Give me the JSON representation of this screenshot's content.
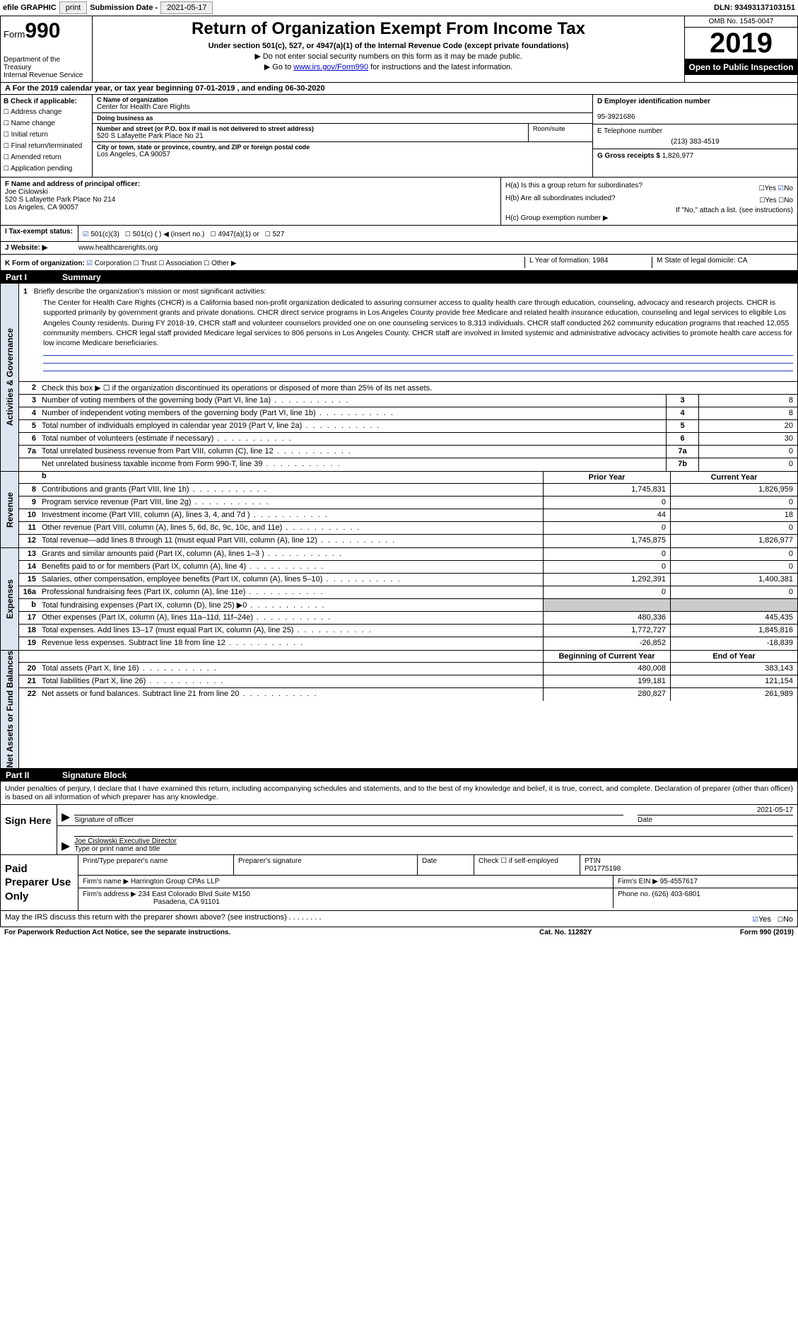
{
  "topbar": {
    "efile": "efile GRAPHIC",
    "print": "print",
    "sub_label": "Submission Date - ",
    "sub_date": "2021-05-17",
    "dln_label": "DLN: ",
    "dln": "93493137103151"
  },
  "header": {
    "form_prefix": "Form",
    "form_num": "990",
    "dept": "Department of the Treasury\nInternal Revenue Service",
    "title": "Return of Organization Exempt From Income Tax",
    "sub": "Under section 501(c), 527, or 4947(a)(1) of the Internal Revenue Code (except private foundations)",
    "line1": "▶ Do not enter social security numbers on this form as it may be made public.",
    "line2_pre": "▶ Go to ",
    "line2_link": "www.irs.gov/Form990",
    "line2_post": " for instructions and the latest information.",
    "omb": "OMB No. 1545-0047",
    "year": "2019",
    "open": "Open to Public Inspection"
  },
  "period": {
    "text": "A  For the 2019 calendar year, or tax year beginning 07-01-2019   , and ending 06-30-2020"
  },
  "colB": {
    "hdr": "B Check if applicable:",
    "items": [
      "Address change",
      "Name change",
      "Initial return",
      "Final return/terminated",
      "Amended return",
      "Application pending"
    ]
  },
  "colC": {
    "name_lab": "C Name of organization",
    "name": "Center for Health Care Rights",
    "dba_lab": "Doing business as",
    "dba": "",
    "street_lab": "Number and street (or P.O. box if mail is not delivered to street address)",
    "street": "520 S Lafayette Park Place No 21",
    "suite_lab": "Room/suite",
    "city_lab": "City or town, state or province, country, and ZIP or foreign postal code",
    "city": "Los Angeles, CA  90057"
  },
  "colDE": {
    "d_lab": "D Employer identification number",
    "ein": "95-3921686",
    "e_lab": "E Telephone number",
    "phone": "(213) 383-4519",
    "g_lab": "G Gross receipts $ ",
    "g_val": "1,826,977"
  },
  "f": {
    "lab": "F  Name and address of principal officer:",
    "name": "Joe Cislowski",
    "addr1": "520 S Lafayette Park Place No 214",
    "addr2": "Los Angeles, CA  90057"
  },
  "h": {
    "a": "H(a)  Is this a group return for subordinates?",
    "a_yes": "Yes",
    "a_no": "No",
    "b": "H(b)  Are all subordinates included?",
    "b_yes": "Yes",
    "b_no": "No",
    "b_note": "If \"No,\" attach a list. (see instructions)",
    "c": "H(c)  Group exemption number ▶"
  },
  "status": {
    "lab": "I  Tax-exempt status:",
    "opts": [
      "501(c)(3)",
      "501(c) (  ) ◀ (insert no.)",
      "4947(a)(1) or",
      "527"
    ]
  },
  "web": {
    "lab": "J  Website: ▶",
    "val": "www.healthcarerights.org"
  },
  "k": {
    "lab": "K Form of organization:",
    "opts": [
      "Corporation",
      "Trust",
      "Association",
      "Other ▶"
    ],
    "l": "L Year of formation: 1984",
    "m": "M State of legal domicile: CA"
  },
  "part1": {
    "num": "Part I",
    "title": "Summary"
  },
  "mission": {
    "hdr": "1   Briefly describe the organization's mission or most significant activities:",
    "text": "The Center for Health Care Rights (CHCR) is a California based non-profit organization dedicated to assuring consumer access to quality health care through education, counseling, advocacy and research projects. CHCR is supported primarily by government grants and private donations. CHCR direct service programs in Los Angeles County provide free Medicare and related health insurance education, counseling and legal services to eligible Los Angeles County residents. During FY 2018-19, CHCR staff and volunteer counselors provided one on one counseling services to 8,313 individuals. CHCR staff conducted 262 community education programs that reached 12,055 community members. CHCR legal staff provided Medicare legal services to 806 persons in Los Angeles County. CHCR staff are involved in limited systemic and administrative advocacy activities to promote health care access for low income Medicare beneficiaries."
  },
  "gov": {
    "tab": "Activities & Governance",
    "l2": "Check this box ▶ ☐ if the organization discontinued its operations or disposed of more than 25% of its net assets.",
    "rows": [
      {
        "n": "3",
        "d": "Number of voting members of the governing body (Part VI, line 1a)",
        "box": "3",
        "v": "8"
      },
      {
        "n": "4",
        "d": "Number of independent voting members of the governing body (Part VI, line 1b)",
        "box": "4",
        "v": "8"
      },
      {
        "n": "5",
        "d": "Total number of individuals employed in calendar year 2019 (Part V, line 2a)",
        "box": "5",
        "v": "20"
      },
      {
        "n": "6",
        "d": "Total number of volunteers (estimate if necessary)",
        "box": "6",
        "v": "30"
      },
      {
        "n": "7a",
        "d": "Total unrelated business revenue from Part VIII, column (C), line 12",
        "box": "7a",
        "v": "0"
      },
      {
        "n": "",
        "d": "Net unrelated business taxable income from Form 990-T, line 39",
        "box": "7b",
        "v": "0"
      }
    ]
  },
  "rev": {
    "tab": "Revenue",
    "hdr_prior": "Prior Year",
    "hdr_curr": "Current Year",
    "rows": [
      {
        "n": "8",
        "d": "Contributions and grants (Part VIII, line 1h)",
        "p": "1,745,831",
        "c": "1,826,959"
      },
      {
        "n": "9",
        "d": "Program service revenue (Part VIII, line 2g)",
        "p": "0",
        "c": "0"
      },
      {
        "n": "10",
        "d": "Investment income (Part VIII, column (A), lines 3, 4, and 7d )",
        "p": "44",
        "c": "18"
      },
      {
        "n": "11",
        "d": "Other revenue (Part VIII, column (A), lines 5, 6d, 8c, 9c, 10c, and 11e)",
        "p": "0",
        "c": "0"
      },
      {
        "n": "12",
        "d": "Total revenue—add lines 8 through 11 (must equal Part VIII, column (A), line 12)",
        "p": "1,745,875",
        "c": "1,826,977"
      }
    ]
  },
  "exp": {
    "tab": "Expenses",
    "rows": [
      {
        "n": "13",
        "d": "Grants and similar amounts paid (Part IX, column (A), lines 1–3 )",
        "p": "0",
        "c": "0"
      },
      {
        "n": "14",
        "d": "Benefits paid to or for members (Part IX, column (A), line 4)",
        "p": "0",
        "c": "0"
      },
      {
        "n": "15",
        "d": "Salaries, other compensation, employee benefits (Part IX, column (A), lines 5–10)",
        "p": "1,292,391",
        "c": "1,400,381"
      },
      {
        "n": "16a",
        "d": "Professional fundraising fees (Part IX, column (A), line 11e)",
        "p": "0",
        "c": "0"
      },
      {
        "n": "b",
        "d": "Total fundraising expenses (Part IX, column (D), line 25) ▶0",
        "p": "",
        "c": "",
        "shaded": true
      },
      {
        "n": "17",
        "d": "Other expenses (Part IX, column (A), lines 11a–11d, 11f–24e)",
        "p": "480,336",
        "c": "445,435"
      },
      {
        "n": "18",
        "d": "Total expenses. Add lines 13–17 (must equal Part IX, column (A), line 25)",
        "p": "1,772,727",
        "c": "1,845,816"
      },
      {
        "n": "19",
        "d": "Revenue less expenses. Subtract line 18 from line 12",
        "p": "-26,852",
        "c": "-18,839"
      }
    ]
  },
  "net": {
    "tab": "Net Assets or Fund Balances",
    "hdr_beg": "Beginning of Current Year",
    "hdr_end": "End of Year",
    "rows": [
      {
        "n": "20",
        "d": "Total assets (Part X, line 16)",
        "p": "480,008",
        "c": "383,143"
      },
      {
        "n": "21",
        "d": "Total liabilities (Part X, line 26)",
        "p": "199,181",
        "c": "121,154"
      },
      {
        "n": "22",
        "d": "Net assets or fund balances. Subtract line 21 from line 20",
        "p": "280,827",
        "c": "261,989"
      }
    ]
  },
  "part2": {
    "num": "Part II",
    "title": "Signature Block"
  },
  "sig": {
    "intro": "Under penalties of perjury, I declare that I have examined this return, including accompanying schedules and statements, and to the best of my knowledge and belief, it is true, correct, and complete. Declaration of preparer (other than officer) is based on all information of which preparer has any knowledge.",
    "sign_here": "Sign Here",
    "sig_of_officer": "Signature of officer",
    "date_lab": "Date",
    "date": "2021-05-17",
    "name_title": "Joe Cislowski  Executive Director",
    "type_lab": "Type or print name and title"
  },
  "prep": {
    "label": "Paid Preparer Use Only",
    "h1": "Print/Type preparer's name",
    "h2": "Preparer's signature",
    "h3": "Date",
    "h4_a": "Check ☐ if self-employed",
    "h5": "PTIN",
    "ptin": "P01775198",
    "firm_name_lab": "Firm's name    ▶ ",
    "firm_name": "Harrington Group CPAs LLP",
    "firm_ein_lab": "Firm's EIN ▶ ",
    "firm_ein": "95-4557617",
    "firm_addr_lab": "Firm's address ▶ ",
    "firm_addr": "234 East Colorado Blvd Suite M150",
    "firm_city": "Pasadena, CA  91101",
    "phone_lab": "Phone no. ",
    "phone": "(626) 403-6801"
  },
  "discuss": {
    "text": "May the IRS discuss this return with the preparer shown above? (see instructions)   .   .   .   .   .   .   .   .",
    "yes": "Yes",
    "no": "No"
  },
  "footer": {
    "l": "For Paperwork Reduction Act Notice, see the separate instructions.",
    "m": "Cat. No. 11282Y",
    "r": "Form 990 (2019)"
  }
}
